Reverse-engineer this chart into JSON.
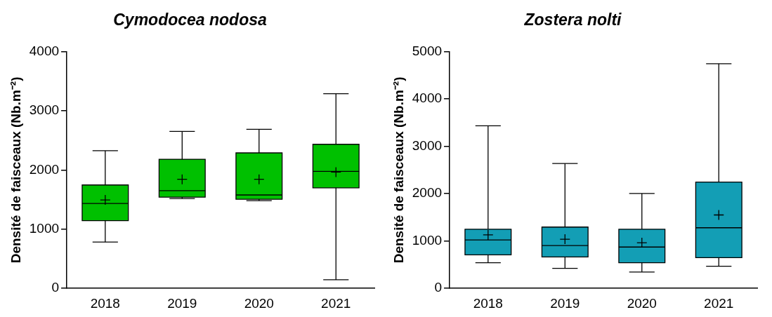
{
  "chart_data": [
    {
      "type": "box",
      "title": "Cymodocea nodosa",
      "ylabel": "Densité de faisceaux (Nb.m⁻²)",
      "categories": [
        "2018",
        "2019",
        "2020",
        "2021"
      ],
      "color": "#00c000",
      "marker": "cross",
      "ylim": [
        0,
        4000
      ],
      "yticks": [
        0,
        1000,
        2000,
        3000,
        4000
      ],
      "boxes": [
        {
          "low": 783,
          "q1": 1145,
          "median": 1434,
          "q3": 1747,
          "high": 2325,
          "mean": 1494
        },
        {
          "low": 1518,
          "q1": 1542,
          "median": 1651,
          "q3": 2181,
          "high": 2651,
          "mean": 1843
        },
        {
          "low": 1482,
          "q1": 1506,
          "median": 1578,
          "q3": 2289,
          "high": 2687,
          "mean": 1843
        },
        {
          "low": 145,
          "q1": 1699,
          "median": 1976,
          "q3": 2434,
          "high": 3289,
          "mean": 1964
        }
      ]
    },
    {
      "type": "box",
      "title": "Zostera nolti",
      "ylabel": "Densité de faisceaux (Nb.m⁻²)",
      "categories": [
        "2018",
        "2019",
        "2020",
        "2021"
      ],
      "color": "#139eb5",
      "marker": "cross",
      "ylim": [
        0,
        5000
      ],
      "yticks": [
        0,
        1000,
        2000,
        3000,
        4000,
        5000
      ],
      "boxes": [
        {
          "low": 542,
          "q1": 708,
          "median": 1024,
          "q3": 1250,
          "high": 3434,
          "mean": 1130
        },
        {
          "low": 422,
          "q1": 663,
          "median": 904,
          "q3": 1295,
          "high": 2636,
          "mean": 1039
        },
        {
          "low": 346,
          "q1": 542,
          "median": 873,
          "q3": 1250,
          "high": 2003,
          "mean": 964
        },
        {
          "low": 467,
          "q1": 648,
          "median": 1280,
          "q3": 2244,
          "high": 4744,
          "mean": 1551
        }
      ]
    }
  ]
}
